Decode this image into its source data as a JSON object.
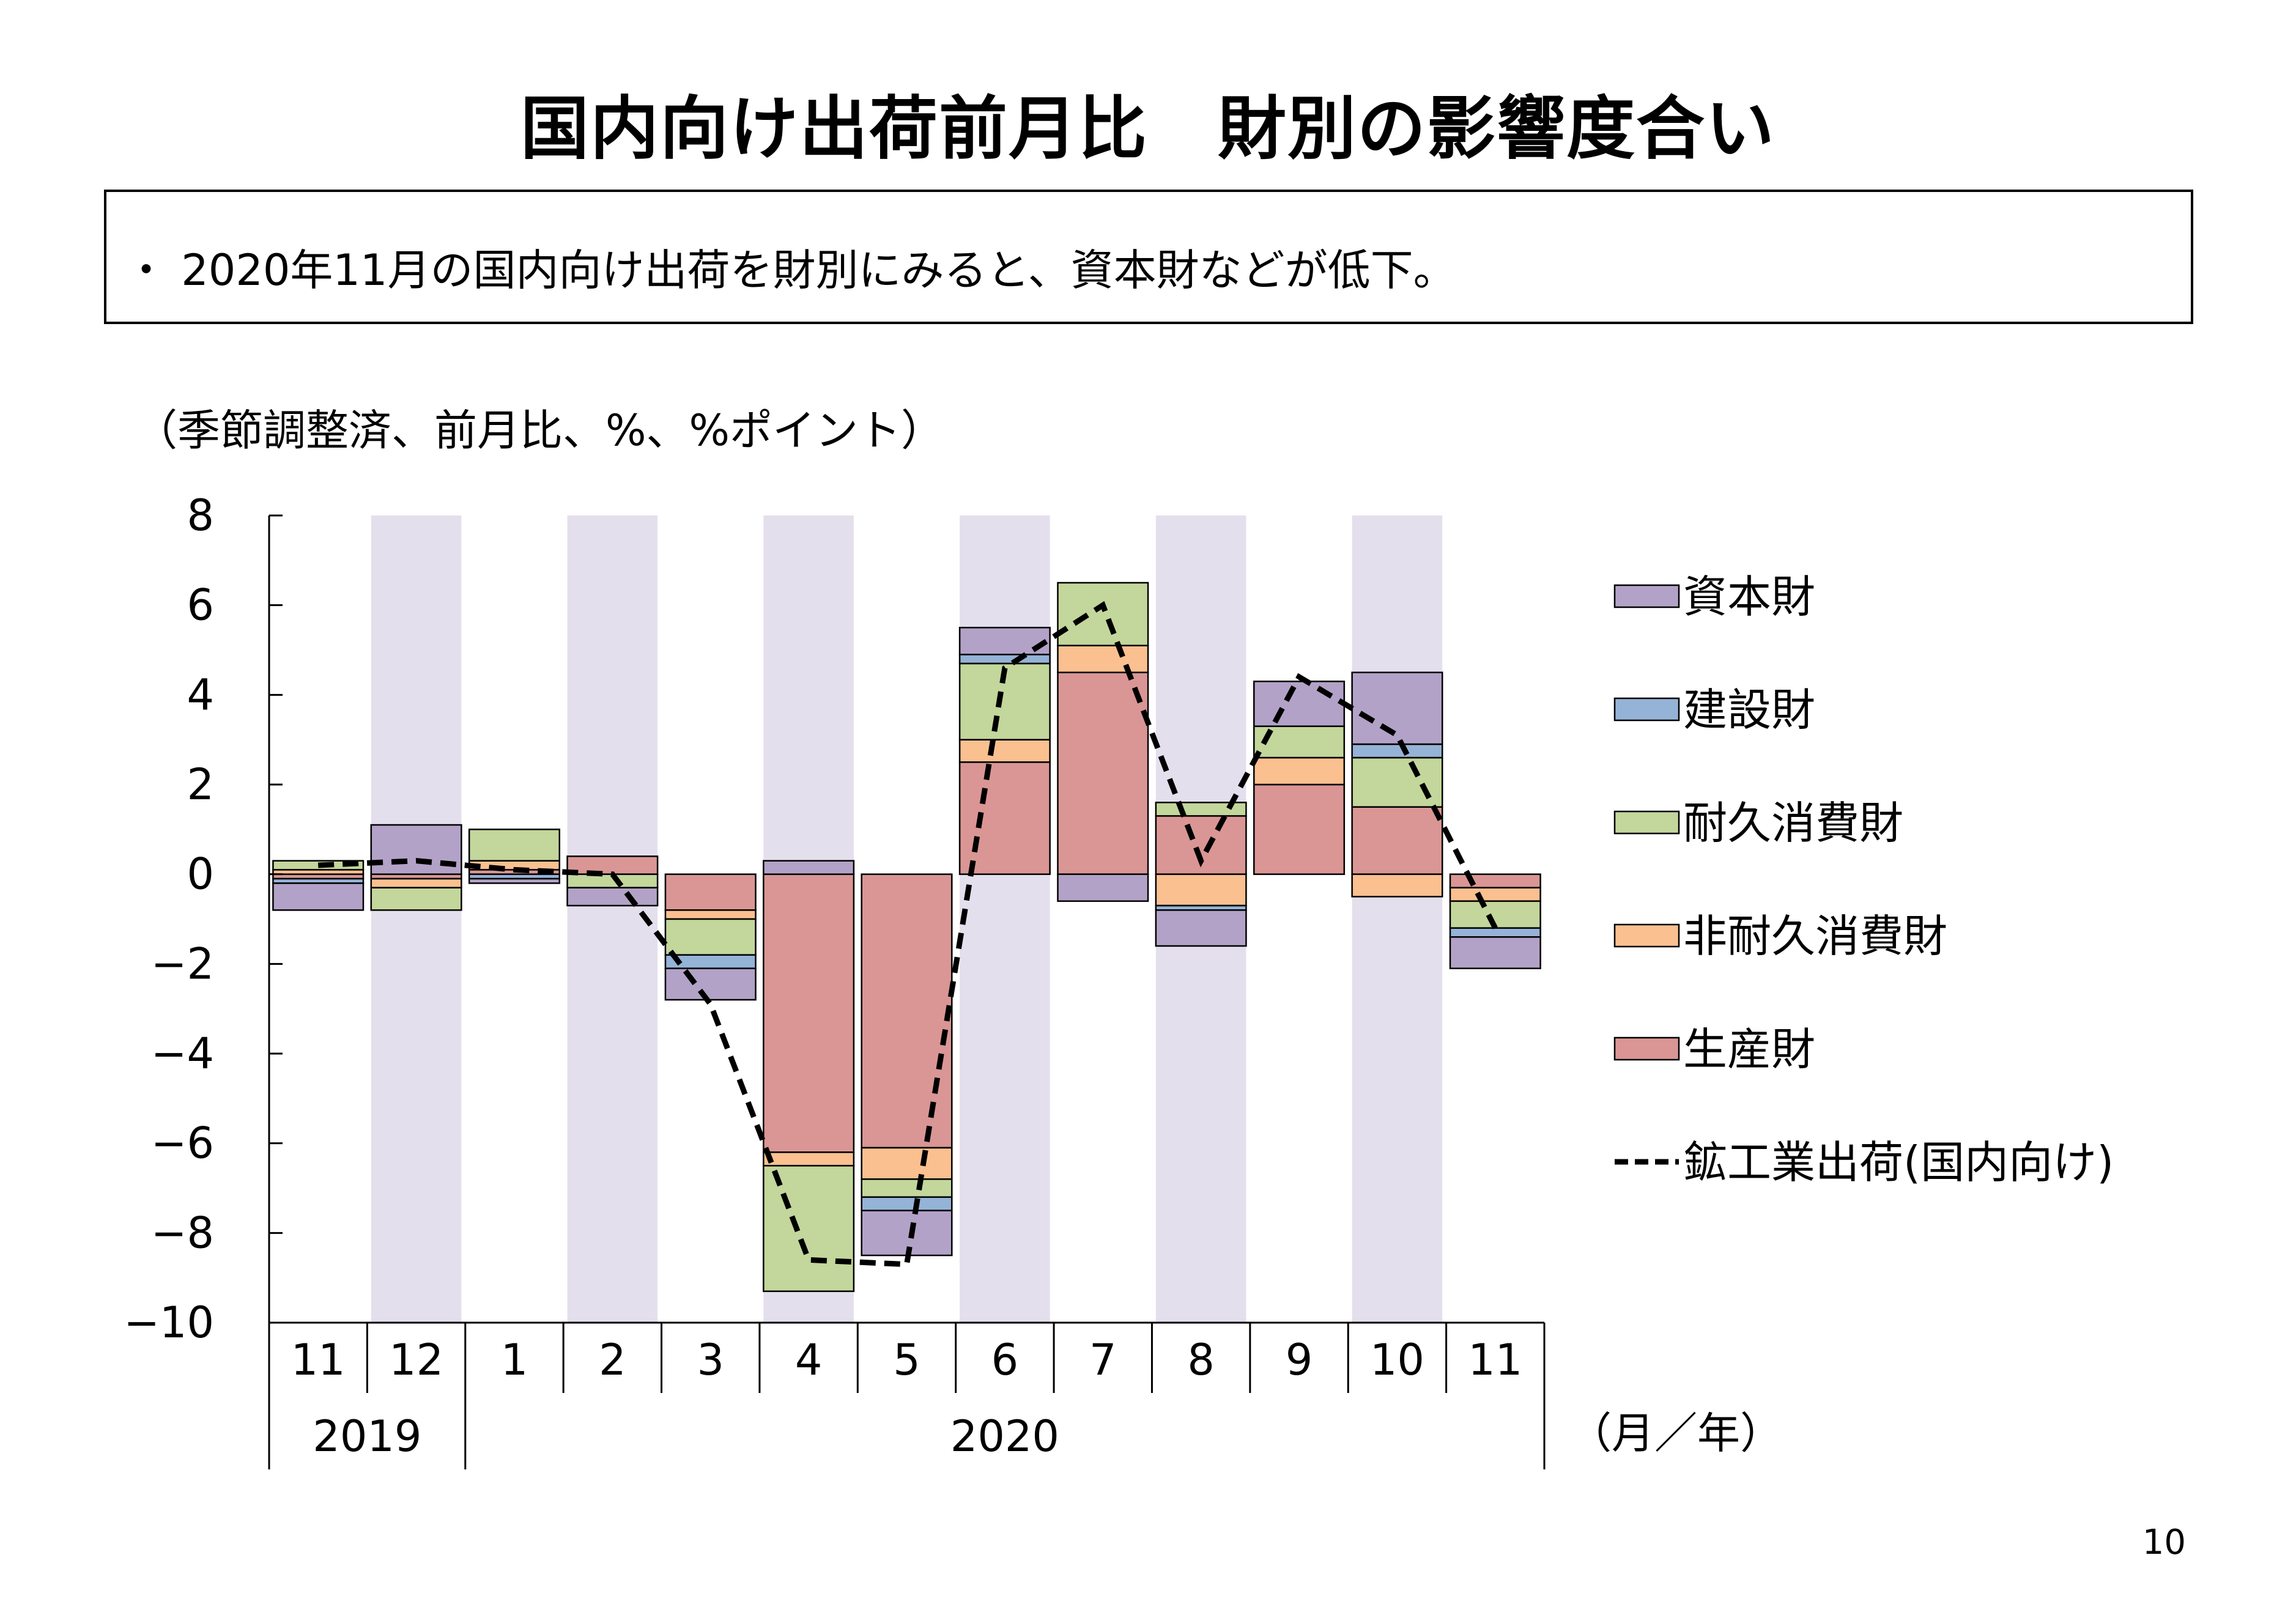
{
  "page": {
    "title": "国内向け出荷前月比　財別の影響度合い",
    "summary": "・ 2020年11月の国内向け出荷を財別にみると、資本財などが低下。",
    "unit_note": "（季節調整済、前月比、%、%ポイント）",
    "axis_unit": "（月／年）",
    "page_number": "10"
  },
  "chart_data": {
    "type": "bar",
    "stacked": true,
    "categories": [
      "11",
      "12",
      "1",
      "2",
      "3",
      "4",
      "5",
      "6",
      "7",
      "8",
      "9",
      "10",
      "11"
    ],
    "year_groups": [
      {
        "label": "2019",
        "span": 2
      },
      {
        "label": "2020",
        "span": 11
      }
    ],
    "ylim": [
      -10,
      8
    ],
    "yticks": [
      8,
      6,
      4,
      2,
      0,
      -2,
      -4,
      -6,
      -8,
      -10
    ],
    "shaded_categories": [
      1,
      3,
      5,
      7,
      9,
      11
    ],
    "shade_color": "#e4dfec",
    "series": [
      {
        "name": "資本財",
        "color": "#b3a2c7",
        "values": [
          -0.6,
          1.1,
          -0.1,
          -0.4,
          -0.7,
          0.3,
          -1.0,
          0.6,
          -0.6,
          -0.8,
          1.0,
          1.6,
          -0.7
        ]
      },
      {
        "name": "建設財",
        "color": "#95b3d7",
        "values": [
          -0.1,
          0.0,
          -0.1,
          0.0,
          -0.3,
          0.0,
          -0.3,
          0.2,
          0.0,
          -0.1,
          0.0,
          0.3,
          -0.2
        ]
      },
      {
        "name": "耐久消費財",
        "color": "#c3d69b",
        "values": [
          0.2,
          -0.5,
          0.7,
          -0.3,
          -0.8,
          -2.8,
          -0.4,
          1.7,
          1.4,
          0.3,
          0.7,
          1.1,
          -0.6
        ]
      },
      {
        "name": "非耐久消費財",
        "color": "#fac090",
        "values": [
          0.1,
          -0.2,
          0.2,
          0.0,
          -0.2,
          -0.3,
          -0.7,
          0.5,
          0.6,
          -0.7,
          0.6,
          -0.5,
          -0.3
        ]
      },
      {
        "name": "生産財",
        "color": "#d99694",
        "values": [
          -0.1,
          -0.1,
          0.1,
          0.4,
          -0.8,
          -6.2,
          -6.1,
          2.5,
          4.5,
          1.3,
          2.0,
          1.5,
          -0.3
        ]
      }
    ],
    "line": {
      "name": "鉱工業出荷(国内向け)",
      "color": "#000000",
      "dashed": true,
      "values": [
        0.2,
        0.3,
        0.1,
        0.0,
        -2.9,
        -8.6,
        -8.7,
        4.6,
        6.0,
        0.3,
        4.4,
        3.1,
        -1.2
      ]
    }
  }
}
